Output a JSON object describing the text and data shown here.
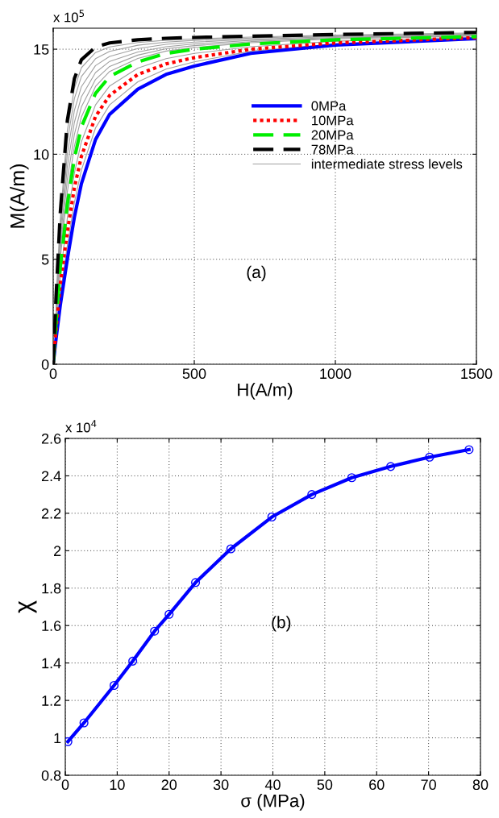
{
  "chart_data": [
    {
      "type": "line",
      "xlabel": "H(A/m)",
      "ylabel": "M(A/m)",
      "annotations": [
        "x 10$^{5}$",
        "(a)"
      ],
      "x": [
        0,
        10,
        25,
        50,
        75,
        100,
        150,
        200,
        300,
        400,
        500,
        700,
        1000,
        1500
      ],
      "xlim": [
        0,
        1500
      ],
      "xticks": [
        0,
        500,
        1000,
        1500
      ],
      "ylim": [
        0,
        16
      ],
      "yticks": [
        0,
        5,
        10,
        15
      ],
      "grid": true,
      "legend": "right",
      "marker": "none",
      "series": [
        {
          "name": "intermediate stress levels",
          "color": "#a0a0a0",
          "line_style": "solid",
          "x": [
            10,
            25,
            50,
            75,
            100,
            150,
            200,
            300,
            400,
            500,
            700,
            1000,
            1500
          ],
          "values": [
            1.4,
            3.3,
            5.65,
            7.7,
            9.25,
            11.25,
            12.35,
            13.45,
            14.05,
            14.4,
            14.9,
            15.25,
            15.53
          ]
        },
        {
          "color": "#a0a0a0",
          "line_style": "solid",
          "x": [
            10,
            25,
            50,
            75,
            100,
            150,
            200,
            300,
            400,
            500,
            700,
            1000,
            1500
          ],
          "values": [
            1.8,
            4.2,
            6.95,
            9.1,
            10.6,
            12.35,
            13.25,
            14.1,
            14.55,
            14.8,
            15.12,
            15.38,
            15.58
          ]
        },
        {
          "color": "#a0a0a0",
          "line_style": "solid",
          "x": [
            10,
            25,
            50,
            75,
            100,
            150,
            200,
            300,
            400,
            500,
            700,
            1000,
            1500
          ],
          "values": [
            2.18,
            4.99,
            8.2,
            10.37,
            11.78,
            13.23,
            13.94,
            14.56,
            14.91,
            15.08,
            15.31,
            15.49,
            15.63
          ]
        },
        {
          "color": "#a0a0a0",
          "line_style": "solid",
          "x": [
            10,
            25,
            50,
            75,
            100,
            150,
            200,
            300,
            400,
            500,
            700,
            1000,
            1500
          ],
          "values": [
            2.36,
            5.38,
            8.8,
            10.94,
            12.26,
            13.56,
            14.18,
            14.72,
            15.02,
            15.17,
            15.36,
            15.53,
            15.66
          ]
        },
        {
          "color": "#a0a0a0",
          "line_style": "solid",
          "x": [
            10,
            25,
            50,
            75,
            100,
            150,
            200,
            300,
            400,
            500,
            700,
            1000,
            1500
          ],
          "values": [
            2.54,
            5.77,
            9.4,
            11.51,
            12.74,
            13.89,
            14.42,
            14.87,
            15.12,
            15.25,
            15.42,
            15.56,
            15.69
          ]
        },
        {
          "color": "#a0a0a0",
          "line_style": "solid",
          "x": [
            10,
            25,
            50,
            75,
            100,
            150,
            200,
            300,
            400,
            500,
            700,
            1000,
            1500
          ],
          "values": [
            2.72,
            6.16,
            10.0,
            12.08,
            13.22,
            14.22,
            14.66,
            15.03,
            15.23,
            15.34,
            15.47,
            15.6,
            15.72
          ]
        },
        {
          "color": "#a0a0a0",
          "line_style": "solid",
          "x": [
            10,
            25,
            50,
            75,
            100,
            150,
            200,
            300,
            400,
            500,
            700,
            1000,
            1500
          ],
          "values": [
            2.9,
            6.55,
            10.6,
            12.65,
            13.7,
            14.55,
            14.9,
            15.19,
            15.34,
            15.42,
            15.53,
            15.64,
            15.75
          ]
        },
        {
          "color": "#a0a0a0",
          "line_style": "solid",
          "x": [
            10,
            25,
            50,
            75,
            100,
            150,
            200,
            300,
            400,
            500,
            700,
            1000,
            1500
          ],
          "values": [
            3.06,
            6.89,
            11.12,
            13.14,
            14.12,
            14.84,
            15.11,
            15.32,
            15.43,
            15.49,
            15.58,
            15.67,
            15.78
          ]
        },
        {
          "name": "0MPa",
          "color": "#0000ff",
          "line_style": "solid",
          "values": [
            0,
            1.2,
            2.8,
            5.0,
            7.0,
            8.6,
            10.7,
            11.9,
            13.1,
            13.8,
            14.2,
            14.8,
            15.2,
            15.5
          ]
        },
        {
          "name": "10MPa",
          "color": "#ff0000",
          "line_style": "dotted",
          "values": [
            0,
            1.6,
            3.8,
            6.3,
            8.4,
            9.9,
            11.8,
            12.8,
            13.8,
            14.3,
            14.6,
            15.0,
            15.3,
            15.55
          ]
        },
        {
          "name": "20MPa",
          "color": "#00ee00",
          "line_style": "dashed",
          "values": [
            0,
            2.0,
            4.6,
            7.6,
            9.8,
            11.3,
            12.9,
            13.7,
            14.4,
            14.8,
            15.0,
            15.25,
            15.45,
            15.6
          ]
        },
        {
          "name": "78MPa",
          "color": "#000000",
          "line_style": "dashed",
          "values": [
            0,
            3.2,
            7.2,
            11.6,
            13.6,
            14.5,
            15.1,
            15.3,
            15.45,
            15.52,
            15.56,
            15.62,
            15.7,
            15.8
          ]
        }
      ]
    },
    {
      "type": "line",
      "xlabel": "σ (MPa)",
      "ylabel": "χ",
      "annotations": [
        "x 10$^{4}$",
        "(b)"
      ],
      "x": [
        0.5,
        3.6,
        9.4,
        13.0,
        17.2,
        20.0,
        25.1,
        31.9,
        39.8,
        47.5,
        55.2,
        62.7,
        70.2,
        77.8
      ],
      "xlim": [
        0,
        80
      ],
      "xticks": [
        0,
        10,
        20,
        30,
        40,
        50,
        60,
        70,
        80
      ],
      "ylim": [
        0.8,
        2.6
      ],
      "yticks": [
        {
          "value": 0.8,
          "label": "0.8"
        },
        1,
        {
          "value": 1.2,
          "label": "1.2"
        },
        {
          "value": 1.4,
          "label": "1.4"
        },
        {
          "value": 1.6,
          "label": "1.6"
        },
        {
          "value": 1.8,
          "label": "1.8"
        },
        2,
        {
          "value": 2.2,
          "label": "2.2"
        },
        {
          "value": 2.4,
          "label": "2.4"
        },
        {
          "value": 2.6,
          "label": "2.6"
        }
      ],
      "grid": true,
      "marker": "circle",
      "line_style": "solid",
      "series": [
        {
          "color": "#0000ff",
          "values": [
            0.98,
            1.08,
            1.28,
            1.41,
            1.57,
            1.66,
            1.83,
            2.01,
            2.18,
            2.3,
            2.39,
            2.45,
            2.5,
            2.54
          ]
        }
      ]
    }
  ]
}
